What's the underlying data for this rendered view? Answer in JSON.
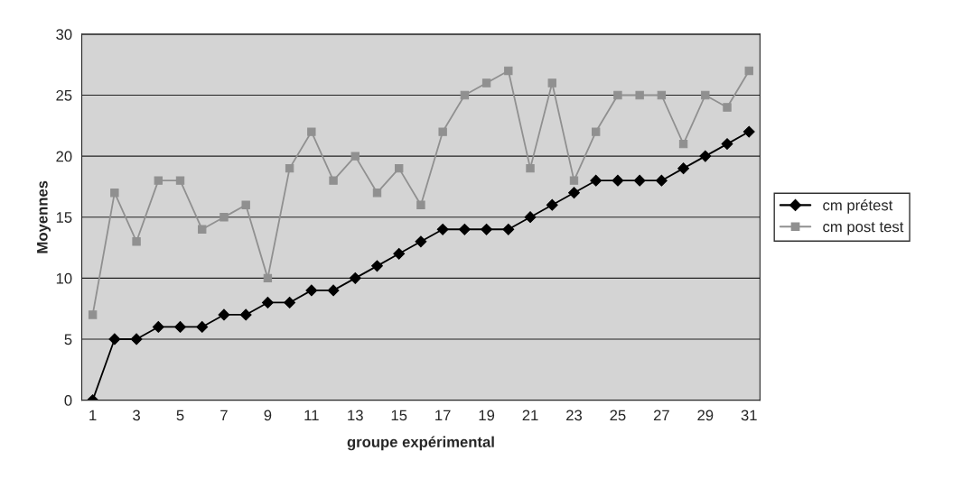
{
  "chart_data": {
    "type": "line",
    "xlabel": "groupe expérimental",
    "ylabel": "Moyennes",
    "categories": [
      "1",
      null,
      "3",
      null,
      "5",
      null,
      "7",
      null,
      "9",
      null,
      "11",
      null,
      "13",
      null,
      "15",
      null,
      "17",
      null,
      "19",
      null,
      "21",
      null,
      "23",
      null,
      "25",
      null,
      "27",
      null,
      "29",
      null,
      "31"
    ],
    "series": [
      {
        "name": "cm prétest",
        "color": "#000000",
        "marker": "diamond",
        "values": [
          0,
          5,
          5,
          6,
          6,
          6,
          7,
          7,
          8,
          8,
          9,
          9,
          10,
          11,
          12,
          13,
          14,
          14,
          14,
          14,
          15,
          16,
          17,
          18,
          18,
          18,
          18,
          19,
          20,
          21,
          22
        ]
      },
      {
        "name": "cm post test",
        "color": "#909090",
        "marker": "square",
        "values": [
          7,
          17,
          13,
          18,
          18,
          14,
          15,
          16,
          10,
          19,
          22,
          18,
          20,
          17,
          19,
          16,
          22,
          25,
          26,
          27,
          19,
          26,
          18,
          22,
          25,
          25,
          25,
          21,
          25,
          24,
          27
        ]
      }
    ],
    "ylim": [
      0,
      30
    ],
    "yticks": [
      0,
      5,
      10,
      15,
      20,
      25,
      30
    ],
    "grid": "y",
    "legend": "right",
    "line_style": "solid"
  }
}
